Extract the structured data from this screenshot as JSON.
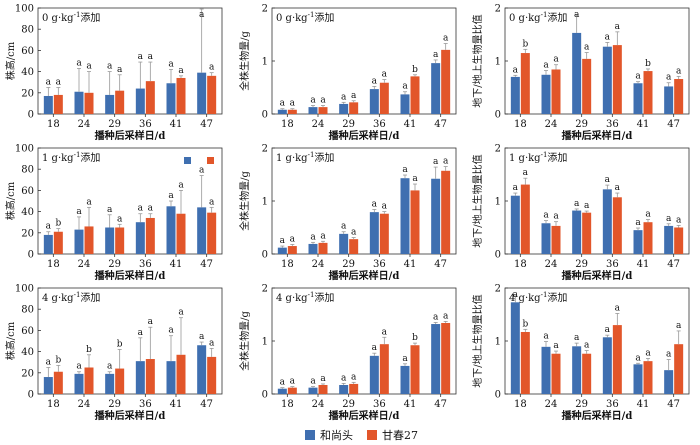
{
  "colors": {
    "heshangtou": "#3f6fb0",
    "gancun27": "#e2562a"
  },
  "legend": {
    "items": [
      "和尚头",
      "甘春27"
    ]
  },
  "chart_data": [
    {
      "type": "bar",
      "panel": "0 g·kg⁻¹添加",
      "ylabel": "株高/cm",
      "xlabel": "播种后采样日/d",
      "categories": [
        "18",
        "24",
        "29",
        "36",
        "41",
        "47"
      ],
      "ylim": [
        0,
        100
      ],
      "yticks": [
        0,
        20,
        40,
        60,
        80,
        100
      ],
      "series": [
        {
          "name": "和尚头",
          "values": [
            17,
            21,
            18,
            24,
            29,
            39
          ],
          "errors": [
            8,
            22,
            22,
            25,
            13,
            60
          ],
          "letters": [
            "a",
            "a",
            "a",
            "a",
            "a",
            "a"
          ]
        },
        {
          "name": "甘春27",
          "values": [
            18,
            20,
            22,
            31,
            34,
            36
          ],
          "errors": [
            7,
            20,
            15,
            18,
            2,
            3
          ],
          "letters": [
            "a",
            "a",
            "a",
            "a",
            "a",
            "a"
          ]
        }
      ]
    },
    {
      "type": "bar",
      "panel": "0 g·kg⁻¹添加",
      "ylabel": "全株生物量/g",
      "xlabel": "播种后采样日/d",
      "categories": [
        "18",
        "24",
        "29",
        "36",
        "41",
        "47"
      ],
      "ylim": [
        0,
        2
      ],
      "yticks": [
        0,
        1,
        2
      ],
      "series": [
        {
          "name": "和尚头",
          "values": [
            0.08,
            0.13,
            0.19,
            0.47,
            0.37,
            0.96
          ],
          "errors": [
            0.02,
            0.03,
            0.03,
            0.05,
            0.05,
            0.06
          ],
          "letters": [
            "a",
            "a",
            "a",
            "a",
            "a",
            "a"
          ]
        },
        {
          "name": "甘春27",
          "values": [
            0.08,
            0.13,
            0.22,
            0.59,
            0.71,
            1.21
          ],
          "errors": [
            0.02,
            0.03,
            0.03,
            0.06,
            0.03,
            0.12
          ],
          "letters": [
            "a",
            "a",
            "a",
            "a",
            "b",
            "a"
          ]
        }
      ]
    },
    {
      "type": "bar",
      "panel": "0 g·kg⁻¹添加",
      "ylabel": "地下/地上生物量比值",
      "xlabel": "播种后采样日/d",
      "categories": [
        "18",
        "24",
        "29",
        "36",
        "41",
        "47"
      ],
      "ylim": [
        0,
        2
      ],
      "yticks": [
        0,
        1,
        2
      ],
      "series": [
        {
          "name": "和尚头",
          "values": [
            0.7,
            0.74,
            1.53,
            1.27,
            0.58,
            0.52
          ],
          "errors": [
            0.03,
            0.08,
            0.35,
            0.08,
            0.03,
            0.07
          ],
          "letters": [
            "a",
            "a",
            "a",
            "a",
            "a",
            "a"
          ]
        },
        {
          "name": "甘春27",
          "values": [
            1.15,
            0.84,
            1.04,
            1.3,
            0.81,
            0.66
          ],
          "errors": [
            0.07,
            0.09,
            0.12,
            0.25,
            0.04,
            0.05
          ],
          "letters": [
            "b",
            "a",
            "a",
            "a",
            "b",
            "a"
          ]
        }
      ]
    },
    {
      "type": "bar",
      "panel": "1 g·kg⁻¹添加",
      "ylabel": "株高/cm",
      "xlabel": "播种后采样日/d",
      "categories": [
        "18",
        "24",
        "29",
        "36",
        "41",
        "47"
      ],
      "ylim": [
        0,
        100
      ],
      "yticks": [
        0,
        20,
        40,
        60,
        80,
        100
      ],
      "series": [
        {
          "name": "和尚头",
          "values": [
            18,
            23,
            25,
            30,
            45,
            44
          ],
          "errors": [
            3,
            12,
            12,
            8,
            5,
            30
          ],
          "letters": [
            "a",
            "a",
            "a",
            "a",
            "a",
            "a"
          ]
        },
        {
          "name": "甘春27",
          "values": [
            21,
            26,
            25,
            34,
            38,
            39
          ],
          "errors": [
            3,
            18,
            3,
            4,
            22,
            5
          ],
          "letters": [
            "b",
            "a",
            "a",
            "a",
            "a",
            "a"
          ]
        }
      ]
    },
    {
      "type": "bar",
      "panel": "1 g·kg⁻¹添加",
      "ylabel": "全株生物量/g",
      "xlabel": "播种后采样日/d",
      "categories": [
        "18",
        "24",
        "29",
        "36",
        "41",
        "47"
      ],
      "ylim": [
        0,
        2
      ],
      "yticks": [
        0,
        1,
        2
      ],
      "series": [
        {
          "name": "和尚头",
          "values": [
            0.12,
            0.19,
            0.38,
            0.79,
            1.43,
            1.42
          ],
          "errors": [
            0.03,
            0.03,
            0.04,
            0.05,
            0.06,
            0.22
          ],
          "letters": [
            "a",
            "a",
            "a",
            "a",
            "a",
            "a"
          ]
        },
        {
          "name": "甘春27",
          "values": [
            0.15,
            0.21,
            0.28,
            0.76,
            1.2,
            1.57
          ],
          "errors": [
            0.03,
            0.03,
            0.03,
            0.04,
            0.12,
            0.08
          ],
          "letters": [
            "a",
            "a",
            "a",
            "a",
            "a",
            "a"
          ]
        }
      ]
    },
    {
      "type": "bar",
      "panel": "1 g·kg⁻¹添加",
      "ylabel": "地下/地上生物量比值",
      "xlabel": "播种后采样日/d",
      "categories": [
        "18",
        "24",
        "29",
        "36",
        "41",
        "47"
      ],
      "ylim": [
        0,
        2
      ],
      "yticks": [
        0,
        1,
        2
      ],
      "series": [
        {
          "name": "和尚头",
          "values": [
            1.1,
            0.58,
            0.82,
            1.22,
            0.45,
            0.53
          ],
          "errors": [
            0.05,
            0.05,
            0.03,
            0.08,
            0.04,
            0.04
          ],
          "letters": [
            "a",
            "a",
            "a",
            "a",
            "a",
            "a"
          ]
        },
        {
          "name": "甘春27",
          "values": [
            1.31,
            0.53,
            0.78,
            1.07,
            0.6,
            0.5
          ],
          "errors": [
            0.12,
            0.08,
            0.03,
            0.08,
            0.05,
            0.04
          ],
          "letters": [
            "a",
            "a",
            "a",
            "a",
            "a",
            "a"
          ]
        }
      ]
    },
    {
      "type": "bar",
      "panel": "4 g·kg⁻¹添加",
      "ylabel": "株高/cm",
      "xlabel": "播种后采样日/d",
      "categories": [
        "18",
        "24",
        "29",
        "36",
        "41",
        "47"
      ],
      "ylim": [
        0,
        100
      ],
      "yticks": [
        0,
        20,
        40,
        60,
        80,
        100
      ],
      "series": [
        {
          "name": "和尚头",
          "values": [
            16,
            19,
            19,
            31,
            31,
            46
          ],
          "errors": [
            9,
            2,
            2,
            22,
            24,
            3
          ],
          "letters": [
            "a",
            "a",
            "a",
            "a",
            "a",
            "a"
          ]
        },
        {
          "name": "甘春27",
          "values": [
            21,
            25,
            24,
            33,
            37,
            35
          ],
          "errors": [
            6,
            12,
            18,
            30,
            35,
            8
          ],
          "letters": [
            "b",
            "b",
            "b",
            "a",
            "a",
            "a"
          ]
        }
      ]
    },
    {
      "type": "bar",
      "panel": "4 g·kg⁻¹添加",
      "ylabel": "全株生物量/g",
      "xlabel": "播种后采样日/d",
      "categories": [
        "18",
        "24",
        "29",
        "36",
        "41",
        "47"
      ],
      "ylim": [
        0,
        2
      ],
      "yticks": [
        0,
        1,
        2
      ],
      "series": [
        {
          "name": "和尚头",
          "values": [
            0.1,
            0.12,
            0.17,
            0.72,
            0.53,
            1.32
          ],
          "errors": [
            0.02,
            0.02,
            0.03,
            0.05,
            0.04,
            0.03
          ],
          "letters": [
            "a",
            "a",
            "a",
            "a",
            "a",
            "a"
          ]
        },
        {
          "name": "甘春27",
          "values": [
            0.12,
            0.17,
            0.19,
            0.94,
            0.92,
            1.34
          ],
          "errors": [
            0.02,
            0.02,
            0.03,
            0.13,
            0.04,
            0.03
          ],
          "letters": [
            "a",
            "a",
            "a",
            "a",
            "b",
            "a"
          ]
        }
      ]
    },
    {
      "type": "bar",
      "panel": "4 g·kg⁻¹添加",
      "ylabel": "地下/地上生物量比值",
      "xlabel": "播种后采样日/d",
      "categories": [
        "18",
        "24",
        "29",
        "36",
        "41",
        "47"
      ],
      "ylim": [
        0,
        2
      ],
      "yticks": [
        0,
        1,
        2
      ],
      "series": [
        {
          "name": "和尚头",
          "values": [
            1.73,
            0.89,
            0.9,
            1.07,
            0.56,
            0.45
          ],
          "errors": [
            0.12,
            0.1,
            0.06,
            0.04,
            0.02,
            0.2
          ],
          "letters": [
            "a",
            "a",
            "a",
            "a",
            "a",
            "a"
          ]
        },
        {
          "name": "甘春27",
          "values": [
            1.17,
            0.76,
            0.76,
            1.3,
            0.62,
            0.94
          ],
          "errors": [
            0.05,
            0.05,
            0.06,
            0.22,
            0.05,
            0.25
          ],
          "letters": [
            "b",
            "a",
            "a",
            "a",
            "a",
            "a"
          ]
        }
      ]
    }
  ]
}
